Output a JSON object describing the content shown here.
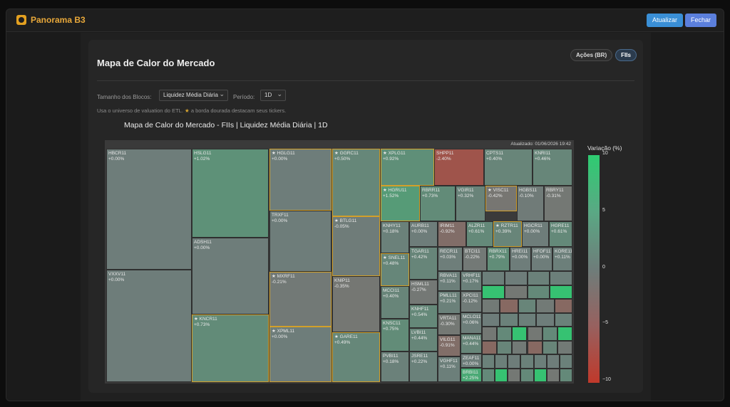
{
  "app": {
    "title": "Panorama B3",
    "buttons": {
      "update": "Atualizar",
      "close": "Fechar"
    }
  },
  "page": {
    "title": "Mapa de Calor do Mercado",
    "segments": [
      {
        "label": "Ações (BR)",
        "active": false
      },
      {
        "label": "FIIs",
        "active": true
      }
    ],
    "controls": {
      "size_label": "Tamanho dos Blocos:",
      "size_value": "Liquidez Média Diária",
      "period_label": "Período:",
      "period_value": "1D"
    },
    "hint_prefix": "Usa o universo de valuation do ETL.",
    "hint_star": "★",
    "hint_suffix": "a borda dourada destacam seus tickers."
  },
  "chart_data": {
    "type": "treemap",
    "title": "Mapa de Calor do Mercado - FIIs | Liquidez Média Diária | 1D",
    "updated": "Atualizado: 01/06/2026 19:42",
    "legend": {
      "title": "Variação (%)",
      "ticks": [
        "10",
        "5",
        "0",
        "−5",
        "−10"
      ],
      "range": [
        -10,
        10
      ],
      "colors": {
        "max": "#2ecc71",
        "zero": "#6e7d7a",
        "min": "#c0392b"
      }
    },
    "tiles": [
      {
        "ticker": "HBCR11",
        "change": "+0.00%",
        "fav": false
      },
      {
        "ticker": "VXXV11",
        "change": "+0.00%",
        "fav": false
      },
      {
        "ticker": "HSLG11",
        "change": "+1.02%",
        "fav": false
      },
      {
        "ticker": "ADSH11",
        "change": "+0.00%",
        "fav": false
      },
      {
        "ticker": "KNCR11",
        "change": "+0.73%",
        "fav": true
      },
      {
        "ticker": "HGLG11",
        "change": "+0.00%",
        "fav": true
      },
      {
        "ticker": "TRXF11",
        "change": "+0.00%",
        "fav": false
      },
      {
        "ticker": "MXRF11",
        "change": "-0.21%",
        "fav": true
      },
      {
        "ticker": "XPML11",
        "change": "+0.00%",
        "fav": true
      },
      {
        "ticker": "GGRC11",
        "change": "+0.50%",
        "fav": true
      },
      {
        "ticker": "BTLG11",
        "change": "-0.05%",
        "fav": true
      },
      {
        "ticker": "KNIP11",
        "change": "-0.35%",
        "fav": false
      },
      {
        "ticker": "GARE11",
        "change": "+0.49%",
        "fav": true
      },
      {
        "ticker": "XPLG11",
        "change": "+0.92%",
        "fav": true
      },
      {
        "ticker": "SHPP11",
        "change": "-2.40%",
        "fav": false
      },
      {
        "ticker": "CPTS11",
        "change": "+0.40%",
        "fav": false
      },
      {
        "ticker": "KNRI11",
        "change": "+0.46%",
        "fav": false
      },
      {
        "ticker": "HGRU11",
        "change": "+1.52%",
        "fav": true
      },
      {
        "ticker": "RBRR11",
        "change": "+0.73%",
        "fav": false
      },
      {
        "ticker": "VGIR11",
        "change": "+0.32%",
        "fav": false
      },
      {
        "ticker": "VISC11",
        "change": "-0.42%",
        "fav": true
      },
      {
        "ticker": "HGBS11",
        "change": "-0.10%",
        "fav": false
      },
      {
        "ticker": "RBRY11",
        "change": "-0.31%",
        "fav": false
      },
      {
        "ticker": "KNHY11",
        "change": "+0.18%",
        "fav": false
      },
      {
        "ticker": "AURB11",
        "change": "+0.00%",
        "fav": false
      },
      {
        "ticker": "IRIM11",
        "change": "-0.92%",
        "fav": false
      },
      {
        "ticker": "ALZR11",
        "change": "+0.61%",
        "fav": false
      },
      {
        "ticker": "RZTR11",
        "change": "+0.39%",
        "fav": true
      },
      {
        "ticker": "HGCR11",
        "change": "+0.00%",
        "fav": false
      },
      {
        "ticker": "HGRE11",
        "change": "+0.61%",
        "fav": false
      },
      {
        "ticker": "SNEL11",
        "change": "+0.48%",
        "fav": true
      },
      {
        "ticker": "TGAR11",
        "change": "+0.42%",
        "fav": false
      },
      {
        "ticker": "RECR11",
        "change": "+0.03%",
        "fav": false
      },
      {
        "ticker": "BTCI11",
        "change": "-0.22%",
        "fav": false
      },
      {
        "ticker": "RBRX11",
        "change": "+0.79%",
        "fav": false
      },
      {
        "ticker": "HREI11",
        "change": "+0.00%",
        "fav": false
      },
      {
        "ticker": "HFOF11",
        "change": "+0.00%",
        "fav": false
      },
      {
        "ticker": "KORE11",
        "change": "+0.11%",
        "fav": false
      },
      {
        "ticker": "HSML11",
        "change": "-0.27%",
        "fav": false
      },
      {
        "ticker": "MCCI11",
        "change": "+0.40%",
        "fav": false
      },
      {
        "ticker": "RBVA11",
        "change": "+0.11%",
        "fav": false
      },
      {
        "ticker": "VRHF11",
        "change": "+0.17%",
        "fav": false
      },
      {
        "ticker": "KNHF11",
        "change": "+0.54%",
        "fav": false
      },
      {
        "ticker": "PMLL11",
        "change": "+0.21%",
        "fav": false
      },
      {
        "ticker": "XPCI11",
        "change": "-0.12%",
        "fav": false
      },
      {
        "ticker": "KNSC11",
        "change": "+0.75%",
        "fav": false
      },
      {
        "ticker": "VRTA11",
        "change": "-0.30%",
        "fav": false
      },
      {
        "ticker": "MCLO11",
        "change": "+0.06%",
        "fav": false
      },
      {
        "ticker": "LVBI11",
        "change": "+0.44%",
        "fav": false
      },
      {
        "ticker": "MANA11",
        "change": "+0.44%",
        "fav": false
      },
      {
        "ticker": "VILG11",
        "change": "-0.91%",
        "fav": false
      },
      {
        "ticker": "PVBI11",
        "change": "+0.18%",
        "fav": false
      },
      {
        "ticker": "JSRE11",
        "change": "+0.22%",
        "fav": false
      },
      {
        "ticker": "ZEAF11",
        "change": "+0.00%",
        "fav": false
      },
      {
        "ticker": "VGHF11",
        "change": "+0.11%",
        "fav": false
      },
      {
        "ticker": "BRBI11",
        "change": "+2.25%",
        "fav": false
      }
    ]
  }
}
